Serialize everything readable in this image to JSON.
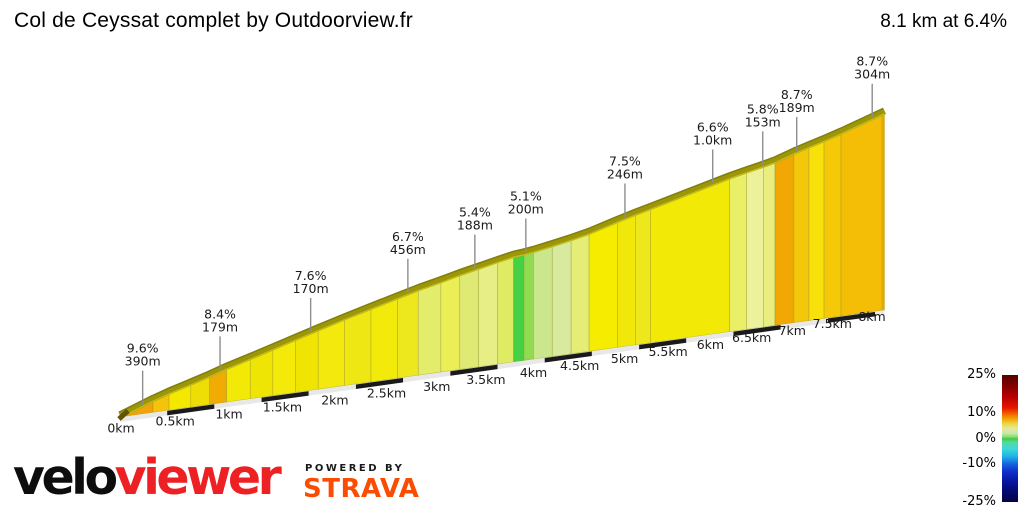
{
  "header": {
    "title": "Col de Ceyssat complet by Outdoorview.fr",
    "summary": "8.1 km at 6.4%"
  },
  "chart_data": {
    "type": "area",
    "title": "Col de Ceyssat complet by Outdoorview.fr",
    "total_distance_km": 8.1,
    "average_gradient_pct": 6.4,
    "x_unit": "km",
    "x_ticks": [
      {
        "km": 0,
        "label": "0km"
      },
      {
        "km": 0.5,
        "label": "0.5km"
      },
      {
        "km": 1,
        "label": "1km"
      },
      {
        "km": 1.5,
        "label": "1.5km"
      },
      {
        "km": 2,
        "label": "2km"
      },
      {
        "km": 2.5,
        "label": "2.5km"
      },
      {
        "km": 3,
        "label": "3km"
      },
      {
        "km": 3.5,
        "label": "3.5km"
      },
      {
        "km": 4,
        "label": "4km"
      },
      {
        "km": 4.5,
        "label": "4.5km"
      },
      {
        "km": 5,
        "label": "5km"
      },
      {
        "km": 5.5,
        "label": "5.5km"
      },
      {
        "km": 6,
        "label": "6km"
      },
      {
        "km": 6.5,
        "label": "6.5km"
      },
      {
        "km": 7,
        "label": "7km"
      },
      {
        "km": 7.5,
        "label": "7.5km"
      },
      {
        "km": 8,
        "label": "8km"
      }
    ],
    "segments": [
      {
        "from": 0.0,
        "to": 0.35,
        "grad": 9.6,
        "color": "#F2A307"
      },
      {
        "from": 0.35,
        "to": 0.52,
        "grad": 8.6,
        "color": "#F5C30B"
      },
      {
        "from": 0.52,
        "to": 0.75,
        "grad": 7.4,
        "color": "#F4E800"
      },
      {
        "from": 0.75,
        "to": 0.95,
        "grad": 7.6,
        "color": "#EFDE06"
      },
      {
        "from": 0.95,
        "to": 1.13,
        "grad": 8.4,
        "color": "#F1AC04"
      },
      {
        "from": 1.13,
        "to": 1.38,
        "grad": 7.3,
        "color": "#F3E907"
      },
      {
        "from": 1.38,
        "to": 1.62,
        "grad": 7.5,
        "color": "#EFE504"
      },
      {
        "from": 1.62,
        "to": 1.86,
        "grad": 7.6,
        "color": "#F4EA0A"
      },
      {
        "from": 1.86,
        "to": 2.1,
        "grad": 7.6,
        "color": "#F0E502"
      },
      {
        "from": 2.1,
        "to": 2.38,
        "grad": 7.3,
        "color": "#F4E90C"
      },
      {
        "from": 2.38,
        "to": 2.66,
        "grad": 7.0,
        "color": "#EFE713"
      },
      {
        "from": 2.66,
        "to": 2.94,
        "grad": 6.8,
        "color": "#F2EA0B"
      },
      {
        "from": 2.94,
        "to": 3.16,
        "grad": 6.7,
        "color": "#EDE81E"
      },
      {
        "from": 3.16,
        "to": 3.4,
        "grad": 5.7,
        "color": "#E3EC6B"
      },
      {
        "from": 3.4,
        "to": 3.6,
        "grad": 6.2,
        "color": "#ECEE55"
      },
      {
        "from": 3.6,
        "to": 3.8,
        "grad": 5.4,
        "color": "#DEEA74"
      },
      {
        "from": 3.8,
        "to": 4.0,
        "grad": 5.6,
        "color": "#E8EE86"
      },
      {
        "from": 4.0,
        "to": 4.17,
        "grad": 5.1,
        "color": "#E0EB64"
      },
      {
        "from": 4.17,
        "to": 4.28,
        "grad": 2.3,
        "color": "#46D044"
      },
      {
        "from": 4.28,
        "to": 4.38,
        "grad": 3.4,
        "color": "#90DB51"
      },
      {
        "from": 4.38,
        "to": 4.58,
        "grad": 4.5,
        "color": "#CAE78D"
      },
      {
        "from": 4.58,
        "to": 4.78,
        "grad": 4.8,
        "color": "#D8EA9D"
      },
      {
        "from": 4.78,
        "to": 4.97,
        "grad": 5.5,
        "color": "#E5ED76"
      },
      {
        "from": 4.97,
        "to": 5.27,
        "grad": 7.5,
        "color": "#F5EC00"
      },
      {
        "from": 5.27,
        "to": 5.46,
        "grad": 7.0,
        "color": "#F1E80A"
      },
      {
        "from": 5.46,
        "to": 5.62,
        "grad": 6.4,
        "color": "#EEE71C"
      },
      {
        "from": 5.62,
        "to": 6.46,
        "grad": 6.6,
        "color": "#F2E906"
      },
      {
        "from": 6.46,
        "to": 6.64,
        "grad": 5.8,
        "color": "#EAEF68"
      },
      {
        "from": 6.64,
        "to": 6.82,
        "grad": 5.3,
        "color": "#EEF19B"
      },
      {
        "from": 6.82,
        "to": 6.94,
        "grad": 6.0,
        "color": "#E9EE7F"
      },
      {
        "from": 6.94,
        "to": 7.14,
        "grad": 8.7,
        "color": "#F1A804"
      },
      {
        "from": 7.14,
        "to": 7.3,
        "grad": 7.6,
        "color": "#F4C80A"
      },
      {
        "from": 7.3,
        "to": 7.46,
        "grad": 7.2,
        "color": "#F8E10B"
      },
      {
        "from": 7.46,
        "to": 7.64,
        "grad": 7.9,
        "color": "#F5C907"
      },
      {
        "from": 7.64,
        "to": 8.1,
        "grad": 8.7,
        "color": "#F4BE06"
      }
    ],
    "callouts": [
      {
        "pct": "9.6%",
        "dist": "390m",
        "km": 0.24
      },
      {
        "pct": "8.4%",
        "dist": "179m",
        "km": 1.06
      },
      {
        "pct": "7.6%",
        "dist": "170m",
        "km": 2.02
      },
      {
        "pct": "6.7%",
        "dist": "456m",
        "km": 3.05
      },
      {
        "pct": "5.4%",
        "dist": "188m",
        "km": 3.76
      },
      {
        "pct": "5.1%",
        "dist": "200m",
        "km": 4.3
      },
      {
        "pct": "7.5%",
        "dist": "246m",
        "km": 5.35
      },
      {
        "pct": "6.6%",
        "dist": "1.0km",
        "km": 6.28
      },
      {
        "pct": "5.8%",
        "dist": "153m",
        "km": 6.81
      },
      {
        "pct": "8.7%",
        "dist": "189m",
        "km": 7.17
      },
      {
        "pct": "8.7%",
        "dist": "304m",
        "km": 7.97
      }
    ],
    "legend": {
      "ticks": [
        {
          "pct": 25,
          "label": "25%"
        },
        {
          "pct": 10,
          "label": "10%"
        },
        {
          "pct": 0,
          "label": "0%"
        },
        {
          "pct": -10,
          "label": "-10%"
        },
        {
          "pct": -25,
          "label": "-25%"
        }
      ],
      "gradient_stops": [
        {
          "pct": 25,
          "color": "#560000"
        },
        {
          "pct": 21,
          "color": "#7E0000"
        },
        {
          "pct": 16,
          "color": "#BE0000"
        },
        {
          "pct": 12,
          "color": "#E51800"
        },
        {
          "pct": 10,
          "color": "#EF5A00"
        },
        {
          "pct": 8,
          "color": "#F29B00"
        },
        {
          "pct": 6,
          "color": "#EDD33C"
        },
        {
          "pct": 4,
          "color": "#E7E89C"
        },
        {
          "pct": 2,
          "color": "#C9E9A4"
        },
        {
          "pct": 0.5,
          "color": "#7FDB6A"
        },
        {
          "pct": 0,
          "color": "#3ECC3E"
        },
        {
          "pct": -1.5,
          "color": "#52D9A0"
        },
        {
          "pct": -4,
          "color": "#3FD8D8"
        },
        {
          "pct": -7,
          "color": "#1FB4E8"
        },
        {
          "pct": -10,
          "color": "#1663E0"
        },
        {
          "pct": -13,
          "color": "#0F2FC8"
        },
        {
          "pct": -17,
          "color": "#0714A0"
        },
        {
          "pct": -21,
          "color": "#03086E"
        },
        {
          "pct": -25,
          "color": "#020448"
        }
      ]
    },
    "style_colors": {
      "road_band": "#9D9708",
      "road_band_dark": "#82800A",
      "road_band_light": "#C2BC1C",
      "divider": "#8F8C25",
      "ruler_dark": "#1A1A1A",
      "ruler_light": "#E8E8E8",
      "callout_line": "#8E8E8E",
      "text": "#1C1C1C"
    }
  },
  "footer": {
    "brand_black": "velo",
    "brand_red": "viewer",
    "powered_by": "POWERED BY",
    "strava": "STRAVA",
    "strava_color": "#FC4C02"
  }
}
